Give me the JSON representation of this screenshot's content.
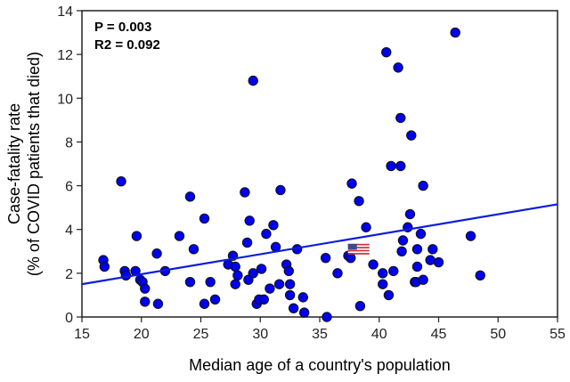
{
  "chart_data": {
    "type": "scatter",
    "xlabel": "Median age of a country's population",
    "ylabel_line1": "Case-fatality rate",
    "ylabel_line2": "(% of COVID patients that died)",
    "xlim": [
      15,
      55
    ],
    "ylim": [
      0,
      14
    ],
    "xticks": [
      15,
      20,
      25,
      30,
      35,
      40,
      45,
      50,
      55
    ],
    "yticks": [
      0,
      2,
      4,
      6,
      8,
      10,
      12,
      14
    ],
    "grid": false,
    "annotations": [
      "P = 0.003",
      "R2 = 0.092"
    ],
    "marker_color": "#0000ee",
    "line_color": "#0a1ed8",
    "regression_line": {
      "x": [
        15,
        55
      ],
      "y": [
        1.5,
        5.15
      ]
    },
    "highlight": {
      "label_icon": "us-flag",
      "x": 38.2,
      "y": 3.1
    },
    "points": [
      [
        16.8,
        2.6
      ],
      [
        16.9,
        2.3
      ],
      [
        18.3,
        6.2
      ],
      [
        18.6,
        2.1
      ],
      [
        18.7,
        1.9
      ],
      [
        19.6,
        3.7
      ],
      [
        19.5,
        2.1
      ],
      [
        19.9,
        1.7
      ],
      [
        20.1,
        1.6
      ],
      [
        20.3,
        1.3
      ],
      [
        20.3,
        0.7
      ],
      [
        21.3,
        2.9
      ],
      [
        21.4,
        0.6
      ],
      [
        22.0,
        2.1
      ],
      [
        23.2,
        3.7
      ],
      [
        24.1,
        5.5
      ],
      [
        24.4,
        3.1
      ],
      [
        24.1,
        1.6
      ],
      [
        25.3,
        4.5
      ],
      [
        25.3,
        0.6
      ],
      [
        25.8,
        1.6
      ],
      [
        26.2,
        0.8
      ],
      [
        27.3,
        2.4
      ],
      [
        27.7,
        2.8
      ],
      [
        27.9,
        2.3
      ],
      [
        27.9,
        1.5
      ],
      [
        28.1,
        1.9
      ],
      [
        28.7,
        5.7
      ],
      [
        28.9,
        3.4
      ],
      [
        29.0,
        1.7
      ],
      [
        29.1,
        4.4
      ],
      [
        29.4,
        10.8
      ],
      [
        29.4,
        2.0
      ],
      [
        29.7,
        0.6
      ],
      [
        29.9,
        0.8
      ],
      [
        30.1,
        2.2
      ],
      [
        30.3,
        0.8
      ],
      [
        30.5,
        3.8
      ],
      [
        30.8,
        1.3
      ],
      [
        31.1,
        4.2
      ],
      [
        31.3,
        3.2
      ],
      [
        31.6,
        1.5
      ],
      [
        31.7,
        5.8
      ],
      [
        32.2,
        2.4
      ],
      [
        32.4,
        2.1
      ],
      [
        32.5,
        1.5
      ],
      [
        32.5,
        1.0
      ],
      [
        32.8,
        0.4
      ],
      [
        33.1,
        3.1
      ],
      [
        33.6,
        0.9
      ],
      [
        33.7,
        0.2
      ],
      [
        35.5,
        2.7
      ],
      [
        35.6,
        0.0
      ],
      [
        36.5,
        2.0
      ],
      [
        37.4,
        2.8
      ],
      [
        37.6,
        2.7
      ],
      [
        37.7,
        6.1
      ],
      [
        38.3,
        5.3
      ],
      [
        38.4,
        0.5
      ],
      [
        38.9,
        4.1
      ],
      [
        39.5,
        2.4
      ],
      [
        40.3,
        2.0
      ],
      [
        40.3,
        1.5
      ],
      [
        40.6,
        12.1
      ],
      [
        40.8,
        1.0
      ],
      [
        41.0,
        6.9
      ],
      [
        41.2,
        2.1
      ],
      [
        41.6,
        11.4
      ],
      [
        41.8,
        9.1
      ],
      [
        41.8,
        6.9
      ],
      [
        41.9,
        3.0
      ],
      [
        42.0,
        3.5
      ],
      [
        42.4,
        4.1
      ],
      [
        42.6,
        4.7
      ],
      [
        42.7,
        8.3
      ],
      [
        43.0,
        1.6
      ],
      [
        43.1,
        1.6
      ],
      [
        43.2,
        3.1
      ],
      [
        43.2,
        2.3
      ],
      [
        43.5,
        3.8
      ],
      [
        43.7,
        6.0
      ],
      [
        43.7,
        1.7
      ],
      [
        44.3,
        2.6
      ],
      [
        44.5,
        3.1
      ],
      [
        45.0,
        2.5
      ],
      [
        46.4,
        13.0
      ],
      [
        47.7,
        3.7
      ],
      [
        48.5,
        1.9
      ]
    ]
  }
}
